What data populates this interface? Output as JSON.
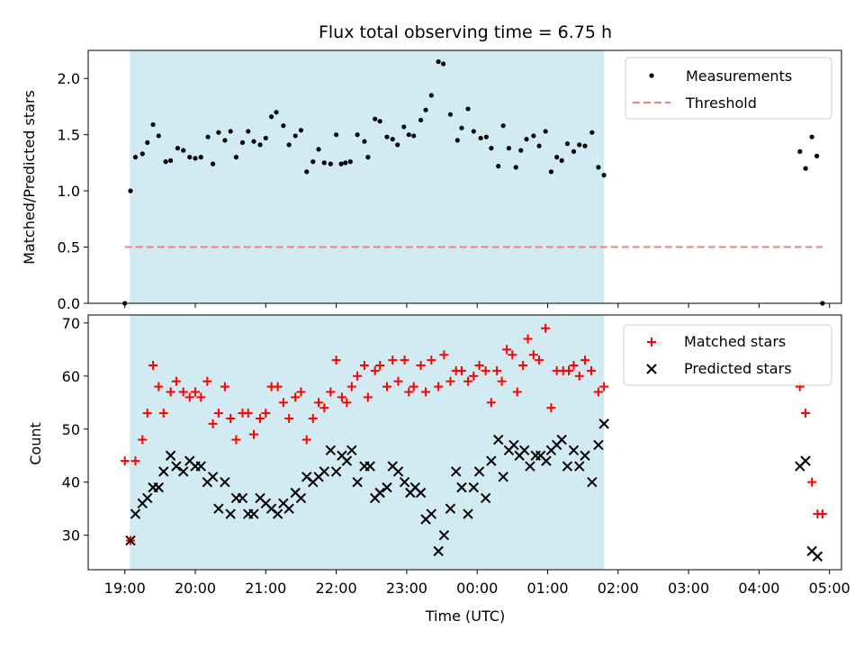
{
  "chart_data": [
    {
      "type": "scatter",
      "title": "Flux total observing time = 6.75 h",
      "ylabel": "Matched/Predicted stars",
      "xlabel": "",
      "ylim": [
        0,
        2.25
      ],
      "yticks": [
        "0.0",
        "0.5",
        "1.0",
        "1.5",
        "2.0"
      ],
      "x_unit": "hours since 19:00 UTC",
      "xlim_hours": [
        -0.52,
        10.17
      ],
      "shaded_span_hours": [
        0.07,
        6.8
      ],
      "shaded_color": "#add8e6",
      "legend_position": "top-right",
      "series": [
        {
          "name": "Measurements",
          "marker": "dot",
          "color": "#000000",
          "points": [
            [
              0.0,
              0.0
            ],
            [
              0.08,
              1.0
            ],
            [
              0.15,
              1.3
            ],
            [
              0.25,
              1.33
            ],
            [
              0.32,
              1.43
            ],
            [
              0.4,
              1.59
            ],
            [
              0.48,
              1.49
            ],
            [
              0.58,
              1.26
            ],
            [
              0.65,
              1.27
            ],
            [
              0.75,
              1.38
            ],
            [
              0.83,
              1.36
            ],
            [
              0.92,
              1.3
            ],
            [
              1.0,
              1.29
            ],
            [
              1.08,
              1.3
            ],
            [
              1.18,
              1.48
            ],
            [
              1.25,
              1.24
            ],
            [
              1.33,
              1.52
            ],
            [
              1.42,
              1.45
            ],
            [
              1.5,
              1.53
            ],
            [
              1.58,
              1.3
            ],
            [
              1.67,
              1.43
            ],
            [
              1.75,
              1.53
            ],
            [
              1.83,
              1.44
            ],
            [
              1.92,
              1.41
            ],
            [
              2.0,
              1.47
            ],
            [
              2.08,
              1.66
            ],
            [
              2.15,
              1.7
            ],
            [
              2.25,
              1.58
            ],
            [
              2.33,
              1.41
            ],
            [
              2.42,
              1.49
            ],
            [
              2.5,
              1.54
            ],
            [
              2.58,
              1.17
            ],
            [
              2.67,
              1.26
            ],
            [
              2.75,
              1.37
            ],
            [
              2.83,
              1.25
            ],
            [
              2.92,
              1.24
            ],
            [
              3.0,
              1.5
            ],
            [
              3.07,
              1.24
            ],
            [
              3.13,
              1.25
            ],
            [
              3.2,
              1.26
            ],
            [
              3.3,
              1.5
            ],
            [
              3.4,
              1.44
            ],
            [
              3.45,
              1.3
            ],
            [
              3.55,
              1.64
            ],
            [
              3.62,
              1.62
            ],
            [
              3.72,
              1.48
            ],
            [
              3.8,
              1.46
            ],
            [
              3.87,
              1.41
            ],
            [
              3.96,
              1.57
            ],
            [
              4.03,
              1.5
            ],
            [
              4.1,
              1.49
            ],
            [
              4.2,
              1.63
            ],
            [
              4.27,
              1.72
            ],
            [
              4.35,
              1.85
            ],
            [
              4.45,
              2.15
            ],
            [
              4.52,
              2.13
            ],
            [
              4.62,
              1.68
            ],
            [
              4.72,
              1.45
            ],
            [
              4.78,
              1.56
            ],
            [
              4.87,
              1.73
            ],
            [
              4.95,
              1.53
            ],
            [
              5.05,
              1.47
            ],
            [
              5.13,
              1.48
            ],
            [
              5.2,
              1.38
            ],
            [
              5.3,
              1.22
            ],
            [
              5.37,
              1.58
            ],
            [
              5.45,
              1.38
            ],
            [
              5.55,
              1.21
            ],
            [
              5.62,
              1.36
            ],
            [
              5.7,
              1.46
            ],
            [
              5.8,
              1.49
            ],
            [
              5.88,
              1.4
            ],
            [
              5.97,
              1.53
            ],
            [
              6.05,
              1.17
            ],
            [
              6.13,
              1.3
            ],
            [
              6.2,
              1.27
            ],
            [
              6.28,
              1.42
            ],
            [
              6.37,
              1.35
            ],
            [
              6.45,
              1.41
            ],
            [
              6.53,
              1.4
            ],
            [
              6.63,
              1.52
            ],
            [
              6.72,
              1.21
            ],
            [
              6.8,
              1.14
            ],
            [
              9.58,
              1.35
            ],
            [
              9.66,
              1.2
            ],
            [
              9.75,
              1.48
            ],
            [
              9.82,
              1.31
            ],
            [
              9.9,
              0.0
            ]
          ]
        },
        {
          "name": "Threshold",
          "marker": "dashed-line",
          "color": "#f08080",
          "points": [
            [
              0.0,
              0.5
            ],
            [
              9.9,
              0.5
            ]
          ]
        }
      ]
    },
    {
      "type": "scatter",
      "title": "",
      "ylabel": "Count",
      "xlabel": "Time (UTC)",
      "ylim": [
        23.5,
        71.5
      ],
      "yticks": [
        "30",
        "40",
        "50",
        "60",
        "70"
      ],
      "xticks": [
        "19:00",
        "20:00",
        "21:00",
        "22:00",
        "23:00",
        "00:00",
        "01:00",
        "02:00",
        "03:00",
        "04:00",
        "05:00"
      ],
      "x_unit": "hours since 19:00 UTC",
      "xlim_hours": [
        -0.52,
        10.17
      ],
      "shaded_span_hours": [
        0.07,
        6.8
      ],
      "shaded_color": "#add8e6",
      "legend_position": "top-right",
      "series": [
        {
          "name": "Matched stars",
          "marker": "plus",
          "color": "#ff0000",
          "points": [
            [
              0.0,
              44
            ],
            [
              0.08,
              29
            ],
            [
              0.15,
              44
            ],
            [
              0.25,
              48
            ],
            [
              0.32,
              53
            ],
            [
              0.4,
              62
            ],
            [
              0.48,
              58
            ],
            [
              0.55,
              53
            ],
            [
              0.65,
              57
            ],
            [
              0.73,
              59
            ],
            [
              0.83,
              57
            ],
            [
              0.92,
              56
            ],
            [
              1.0,
              57
            ],
            [
              1.08,
              56
            ],
            [
              1.17,
              59
            ],
            [
              1.25,
              51
            ],
            [
              1.33,
              53
            ],
            [
              1.42,
              58
            ],
            [
              1.5,
              52
            ],
            [
              1.58,
              48
            ],
            [
              1.67,
              53
            ],
            [
              1.75,
              53
            ],
            [
              1.83,
              49
            ],
            [
              1.92,
              52
            ],
            [
              2.0,
              53
            ],
            [
              2.08,
              58
            ],
            [
              2.17,
              58
            ],
            [
              2.25,
              55
            ],
            [
              2.33,
              52
            ],
            [
              2.42,
              56
            ],
            [
              2.5,
              57
            ],
            [
              2.58,
              48
            ],
            [
              2.67,
              52
            ],
            [
              2.75,
              55
            ],
            [
              2.83,
              54
            ],
            [
              2.92,
              57
            ],
            [
              3.0,
              63
            ],
            [
              3.08,
              56
            ],
            [
              3.15,
              55
            ],
            [
              3.22,
              58
            ],
            [
              3.3,
              60
            ],
            [
              3.4,
              62
            ],
            [
              3.45,
              56
            ],
            [
              3.55,
              61
            ],
            [
              3.62,
              62
            ],
            [
              3.72,
              58
            ],
            [
              3.8,
              63
            ],
            [
              3.88,
              59
            ],
            [
              3.97,
              63
            ],
            [
              4.03,
              57
            ],
            [
              4.1,
              58
            ],
            [
              4.2,
              62
            ],
            [
              4.27,
              57
            ],
            [
              4.35,
              63
            ],
            [
              4.45,
              58
            ],
            [
              4.53,
              64
            ],
            [
              4.62,
              59
            ],
            [
              4.7,
              61
            ],
            [
              4.78,
              61
            ],
            [
              4.87,
              59
            ],
            [
              4.95,
              60
            ],
            [
              5.03,
              62
            ],
            [
              5.12,
              61
            ],
            [
              5.2,
              55
            ],
            [
              5.28,
              61
            ],
            [
              5.35,
              59
            ],
            [
              5.42,
              65
            ],
            [
              5.5,
              64
            ],
            [
              5.57,
              57
            ],
            [
              5.65,
              62
            ],
            [
              5.72,
              67
            ],
            [
              5.8,
              64
            ],
            [
              5.88,
              63
            ],
            [
              5.97,
              69
            ],
            [
              6.05,
              54
            ],
            [
              6.13,
              61
            ],
            [
              6.22,
              61
            ],
            [
              6.3,
              61
            ],
            [
              6.37,
              62
            ],
            [
              6.45,
              60
            ],
            [
              6.53,
              63
            ],
            [
              6.62,
              61
            ],
            [
              6.72,
              57
            ],
            [
              6.8,
              58
            ],
            [
              9.58,
              58
            ],
            [
              9.66,
              53
            ],
            [
              9.75,
              40
            ],
            [
              9.83,
              34
            ],
            [
              9.9,
              34
            ]
          ]
        },
        {
          "name": "Predicted stars",
          "marker": "x",
          "color": "#000000",
          "points": [
            [
              0.08,
              29
            ],
            [
              0.15,
              34
            ],
            [
              0.25,
              36
            ],
            [
              0.32,
              37
            ],
            [
              0.4,
              39
            ],
            [
              0.48,
              39
            ],
            [
              0.55,
              42
            ],
            [
              0.65,
              45
            ],
            [
              0.73,
              43
            ],
            [
              0.83,
              42
            ],
            [
              0.92,
              44
            ],
            [
              1.0,
              43
            ],
            [
              1.08,
              43
            ],
            [
              1.17,
              40
            ],
            [
              1.25,
              41
            ],
            [
              1.33,
              35
            ],
            [
              1.42,
              40
            ],
            [
              1.5,
              34
            ],
            [
              1.58,
              37
            ],
            [
              1.67,
              37
            ],
            [
              1.75,
              34
            ],
            [
              1.83,
              34
            ],
            [
              1.92,
              37
            ],
            [
              2.0,
              36
            ],
            [
              2.08,
              35
            ],
            [
              2.17,
              34
            ],
            [
              2.25,
              36
            ],
            [
              2.33,
              35
            ],
            [
              2.42,
              38
            ],
            [
              2.5,
              37
            ],
            [
              2.58,
              41
            ],
            [
              2.67,
              40
            ],
            [
              2.75,
              41
            ],
            [
              2.83,
              42
            ],
            [
              2.92,
              46
            ],
            [
              3.0,
              42
            ],
            [
              3.08,
              45
            ],
            [
              3.15,
              44
            ],
            [
              3.22,
              46
            ],
            [
              3.3,
              40
            ],
            [
              3.4,
              43
            ],
            [
              3.48,
              43
            ],
            [
              3.55,
              37
            ],
            [
              3.62,
              38
            ],
            [
              3.72,
              39
            ],
            [
              3.8,
              43
            ],
            [
              3.88,
              42
            ],
            [
              3.97,
              40
            ],
            [
              4.05,
              38
            ],
            [
              4.12,
              39
            ],
            [
              4.2,
              38
            ],
            [
              4.27,
              33
            ],
            [
              4.35,
              34
            ],
            [
              4.45,
              27
            ],
            [
              4.53,
              30
            ],
            [
              4.62,
              35
            ],
            [
              4.7,
              42
            ],
            [
              4.78,
              39
            ],
            [
              4.87,
              34
            ],
            [
              4.95,
              39
            ],
            [
              5.03,
              42
            ],
            [
              5.12,
              37
            ],
            [
              5.2,
              44
            ],
            [
              5.3,
              48
            ],
            [
              5.37,
              41
            ],
            [
              5.45,
              46
            ],
            [
              5.52,
              47
            ],
            [
              5.6,
              45
            ],
            [
              5.67,
              46
            ],
            [
              5.75,
              43
            ],
            [
              5.83,
              45
            ],
            [
              5.9,
              45
            ],
            [
              5.98,
              44
            ],
            [
              6.05,
              46
            ],
            [
              6.13,
              47
            ],
            [
              6.2,
              48
            ],
            [
              6.28,
              43
            ],
            [
              6.37,
              46
            ],
            [
              6.45,
              43
            ],
            [
              6.53,
              45
            ],
            [
              6.63,
              40
            ],
            [
              6.72,
              47
            ],
            [
              6.8,
              51
            ],
            [
              9.58,
              43
            ],
            [
              9.66,
              44
            ],
            [
              9.75,
              27
            ],
            [
              9.83,
              26
            ]
          ]
        }
      ]
    }
  ]
}
